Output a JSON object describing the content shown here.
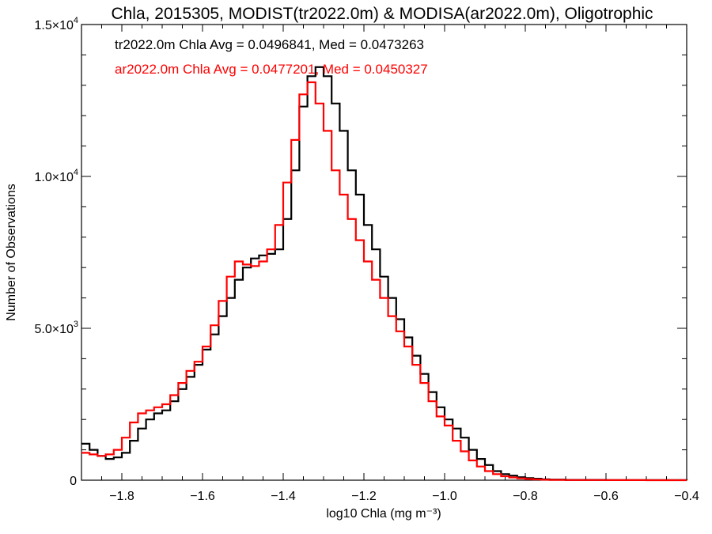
{
  "chart_data": {
    "type": "line",
    "title": "Chla, 2015305, MODIST(tr2022.0m) & MODISA(ar2022.0m), Oligotrophic",
    "xlabel": "log10 Chla (mg m⁻³)",
    "ylabel": "Number of Observations",
    "xlim": [
      -1.9,
      -0.4
    ],
    "ylim": [
      0,
      15000
    ],
    "x_ticks": [
      -1.8,
      -1.6,
      -1.4,
      -1.2,
      -1.0,
      -0.8,
      -0.6,
      -0.4
    ],
    "x_tick_labels": [
      "−1.8",
      "−1.6",
      "−1.4",
      "−1.2",
      "−1.0",
      "−0.8",
      "−0.6",
      "−0.4"
    ],
    "y_ticks": [
      0,
      5000,
      10000,
      15000
    ],
    "y_tick_labels": [
      {
        "mantissa": "0",
        "exp": ""
      },
      {
        "mantissa": "5.0×10",
        "exp": "3"
      },
      {
        "mantissa": "1.0×10",
        "exp": "4"
      },
      {
        "mantissa": "1.5×10",
        "exp": "4"
      }
    ],
    "annotations": [
      "tr2022.0m Chla Avg = 0.0496841, Med = 0.0473263",
      "ar2022.0m Chla Avg = 0.0477201, Med = 0.0450327"
    ],
    "series": [
      {
        "color": "#000000",
        "x": [
          -1.9,
          -1.88,
          -1.86,
          -1.84,
          -1.82,
          -1.8,
          -1.78,
          -1.76,
          -1.74,
          -1.72,
          -1.7,
          -1.68,
          -1.66,
          -1.64,
          -1.62,
          -1.6,
          -1.58,
          -1.56,
          -1.54,
          -1.52,
          -1.5,
          -1.48,
          -1.46,
          -1.44,
          -1.42,
          -1.4,
          -1.38,
          -1.36,
          -1.34,
          -1.32,
          -1.3,
          -1.28,
          -1.26,
          -1.24,
          -1.22,
          -1.2,
          -1.18,
          -1.16,
          -1.14,
          -1.12,
          -1.1,
          -1.08,
          -1.06,
          -1.04,
          -1.02,
          -1.0,
          -0.98,
          -0.96,
          -0.94,
          -0.92,
          -0.9,
          -0.88,
          -0.86,
          -0.84,
          -0.82,
          -0.8,
          -0.78,
          -0.76,
          -0.74,
          -0.7,
          -0.6,
          -0.5,
          -0.4
        ],
        "y": [
          1200,
          1000,
          800,
          700,
          750,
          900,
          1300,
          1700,
          2000,
          2200,
          2300,
          2600,
          3000,
          3400,
          3800,
          4300,
          4800,
          5400,
          6000,
          6600,
          7000,
          7300,
          7400,
          7450,
          7600,
          8600,
          10200,
          12300,
          13300,
          13600,
          13300,
          12400,
          11500,
          10200,
          9400,
          8400,
          7600,
          6700,
          6000,
          5300,
          4700,
          4100,
          3500,
          2900,
          2400,
          2000,
          1700,
          1400,
          1000,
          700,
          500,
          300,
          200,
          150,
          100,
          70,
          50,
          30,
          20,
          10,
          5,
          2,
          0
        ]
      },
      {
        "color": "#ff0000",
        "x": [
          -1.9,
          -1.88,
          -1.86,
          -1.84,
          -1.82,
          -1.8,
          -1.78,
          -1.76,
          -1.74,
          -1.72,
          -1.7,
          -1.68,
          -1.66,
          -1.64,
          -1.62,
          -1.6,
          -1.58,
          -1.56,
          -1.54,
          -1.52,
          -1.5,
          -1.48,
          -1.46,
          -1.44,
          -1.42,
          -1.4,
          -1.38,
          -1.36,
          -1.34,
          -1.32,
          -1.3,
          -1.28,
          -1.26,
          -1.24,
          -1.22,
          -1.2,
          -1.18,
          -1.16,
          -1.14,
          -1.12,
          -1.1,
          -1.08,
          -1.06,
          -1.04,
          -1.02,
          -1.0,
          -0.98,
          -0.96,
          -0.94,
          -0.92,
          -0.9,
          -0.88,
          -0.86,
          -0.84,
          -0.82,
          -0.8,
          -0.78,
          -0.76,
          -0.74,
          -0.7,
          -0.6,
          -0.5,
          -0.4
        ],
        "y": [
          900,
          850,
          800,
          850,
          1000,
          1400,
          1900,
          2200,
          2300,
          2400,
          2500,
          2800,
          3200,
          3600,
          3900,
          4400,
          5100,
          5900,
          6700,
          7200,
          7100,
          7050,
          7200,
          7600,
          8400,
          9800,
          11200,
          12700,
          13100,
          12400,
          11500,
          10200,
          9400,
          8600,
          7900,
          7200,
          6600,
          6000,
          5400,
          4900,
          4400,
          3800,
          3200,
          2600,
          2100,
          1800,
          1300,
          950,
          650,
          450,
          300,
          200,
          130,
          90,
          60,
          40,
          25,
          15,
          10,
          5,
          2,
          1,
          0
        ]
      }
    ]
  }
}
